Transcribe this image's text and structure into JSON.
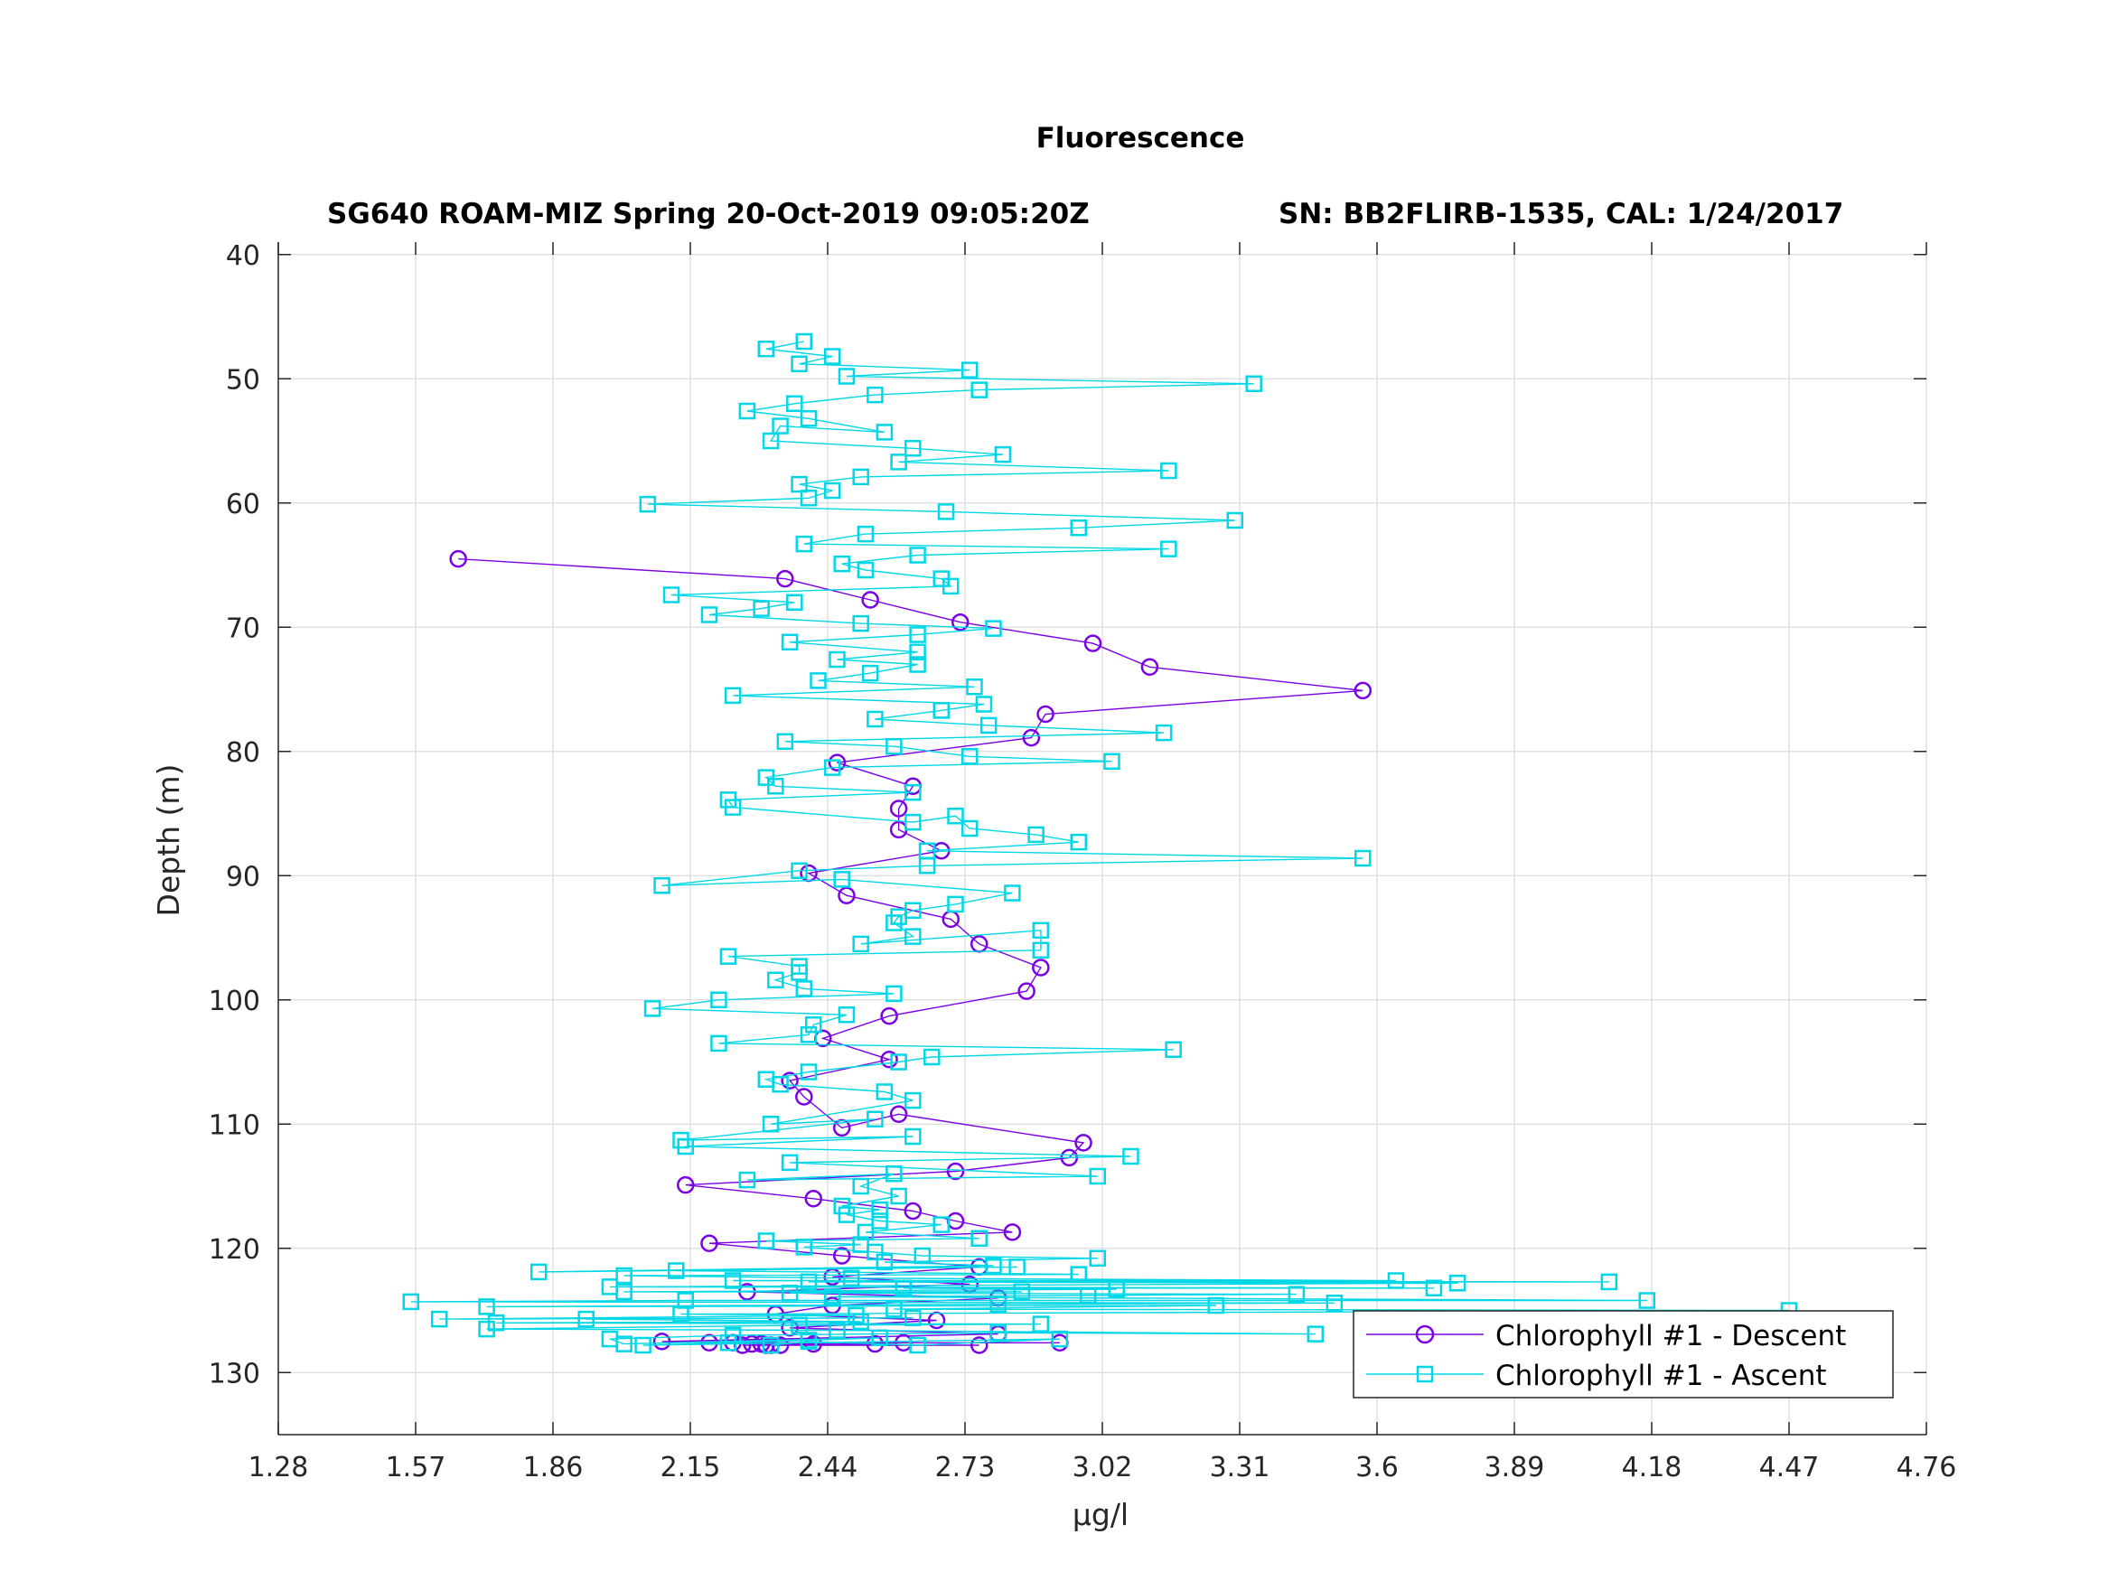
{
  "chart_data": {
    "type": "line",
    "title": "Fluorescence",
    "subtitle_left": "SG640 ROAM-MIZ Spring 20-Oct-2019 09:05:20Z",
    "subtitle_right": "SN: BB2FLIRB-1535, CAL: 1/24/2017",
    "xlabel": "μg/l",
    "ylabel": "Depth (m)",
    "xlim": [
      1.28,
      4.76
    ],
    "ylim": [
      135,
      39
    ],
    "y_reversed": true,
    "grid": true,
    "x_ticks": [
      "1.28",
      "1.57",
      "1.86",
      "2.15",
      "2.44",
      "2.73",
      "3.02",
      "3.31",
      "3.6",
      "3.89",
      "4.18",
      "4.47",
      "4.76"
    ],
    "y_ticks": [
      "40",
      "50",
      "60",
      "70",
      "80",
      "90",
      "100",
      "110",
      "120",
      "130"
    ],
    "legend_position": "bottom-right",
    "series": [
      {
        "name": "Chlorophyll #1 - Descent",
        "color": "#7b00e6",
        "marker": "circle",
        "points": [
          [
            1.66,
            64.5
          ],
          [
            2.35,
            66.1
          ],
          [
            2.53,
            67.8
          ],
          [
            2.72,
            69.6
          ],
          [
            3.0,
            71.3
          ],
          [
            3.12,
            73.2
          ],
          [
            3.57,
            75.1
          ],
          [
            2.9,
            77.0
          ],
          [
            2.87,
            78.9
          ],
          [
            2.46,
            80.9
          ],
          [
            2.62,
            82.8
          ],
          [
            2.59,
            84.6
          ],
          [
            2.59,
            86.3
          ],
          [
            2.68,
            88.0
          ],
          [
            2.4,
            89.8
          ],
          [
            2.48,
            91.6
          ],
          [
            2.7,
            93.5
          ],
          [
            2.76,
            95.5
          ],
          [
            2.89,
            97.4
          ],
          [
            2.86,
            99.3
          ],
          [
            2.57,
            101.3
          ],
          [
            2.43,
            103.1
          ],
          [
            2.57,
            104.8
          ],
          [
            2.36,
            106.5
          ],
          [
            2.39,
            107.8
          ],
          [
            2.47,
            110.3
          ],
          [
            2.59,
            109.2
          ],
          [
            2.98,
            111.5
          ],
          [
            2.95,
            112.7
          ],
          [
            2.71,
            113.8
          ],
          [
            2.14,
            114.9
          ],
          [
            2.41,
            116.0
          ],
          [
            2.62,
            117.0
          ],
          [
            2.71,
            117.8
          ],
          [
            2.83,
            118.7
          ],
          [
            2.19,
            119.6
          ],
          [
            2.47,
            120.6
          ],
          [
            2.76,
            121.5
          ],
          [
            2.45,
            122.3
          ],
          [
            2.74,
            122.9
          ],
          [
            2.27,
            123.5
          ],
          [
            2.8,
            124.0
          ],
          [
            2.45,
            124.6
          ],
          [
            2.33,
            125.3
          ],
          [
            2.67,
            125.8
          ],
          [
            2.36,
            126.4
          ],
          [
            2.8,
            126.9
          ],
          [
            2.09,
            127.5
          ],
          [
            2.24,
            127.6
          ],
          [
            2.93,
            127.6
          ],
          [
            2.6,
            127.6
          ],
          [
            2.41,
            127.7
          ],
          [
            2.19,
            127.6
          ],
          [
            2.54,
            127.7
          ],
          [
            2.32,
            127.8
          ],
          [
            2.76,
            127.8
          ],
          [
            2.26,
            127.8
          ],
          [
            2.34,
            127.8
          ],
          [
            2.28,
            127.7
          ],
          [
            2.3,
            127.7
          ],
          [
            2.31,
            127.8
          ]
        ]
      },
      {
        "name": "Chlorophyll #1 - Ascent",
        "color": "#00d7e6",
        "marker": "square",
        "points": [
          [
            2.32,
            127.8
          ],
          [
            2.4,
            127.5
          ],
          [
            2.63,
            127.8
          ],
          [
            2.93,
            127.3
          ],
          [
            2.05,
            127.8
          ],
          [
            2.23,
            127.6
          ],
          [
            2.4,
            127.4
          ],
          [
            2.55,
            127.2
          ],
          [
            2.01,
            127.7
          ],
          [
            1.98,
            127.3
          ],
          [
            2.24,
            127.0
          ],
          [
            2.8,
            126.8
          ],
          [
            3.47,
            126.9
          ],
          [
            2.46,
            126.6
          ],
          [
            1.72,
            126.5
          ],
          [
            2.38,
            126.2
          ],
          [
            2.89,
            126.1
          ],
          [
            1.74,
            126.0
          ],
          [
            2.51,
            125.9
          ],
          [
            1.93,
            125.7
          ],
          [
            2.62,
            125.6
          ],
          [
            1.62,
            125.7
          ],
          [
            2.5,
            125.4
          ],
          [
            2.13,
            125.3
          ],
          [
            4.47,
            125.0
          ],
          [
            2.58,
            124.9
          ],
          [
            3.26,
            124.6
          ],
          [
            1.72,
            124.7
          ],
          [
            2.8,
            124.5
          ],
          [
            3.51,
            124.4
          ],
          [
            1.56,
            124.3
          ],
          [
            2.14,
            124.2
          ],
          [
            4.17,
            124.2
          ],
          [
            2.45,
            123.9
          ],
          [
            2.99,
            123.8
          ],
          [
            3.43,
            123.7
          ],
          [
            2.36,
            123.6
          ],
          [
            2.85,
            123.5
          ],
          [
            2.01,
            123.5
          ],
          [
            3.05,
            123.3
          ],
          [
            2.6,
            123.2
          ],
          [
            3.72,
            123.2
          ],
          [
            1.98,
            123.1
          ],
          [
            3.77,
            122.8
          ],
          [
            2.4,
            122.7
          ],
          [
            4.09,
            122.7
          ],
          [
            2.24,
            122.6
          ],
          [
            3.64,
            122.6
          ],
          [
            2.49,
            122.4
          ],
          [
            2.01,
            122.2
          ],
          [
            2.97,
            122.1
          ],
          [
            2.12,
            121.8
          ],
          [
            2.84,
            121.5
          ],
          [
            1.83,
            121.9
          ],
          [
            2.79,
            121.4
          ],
          [
            2.56,
            121.1
          ],
          [
            3.01,
            120.8
          ],
          [
            2.64,
            120.6
          ],
          [
            2.54,
            120.3
          ],
          [
            2.39,
            119.9
          ],
          [
            2.51,
            119.7
          ],
          [
            2.31,
            119.4
          ],
          [
            2.76,
            119.2
          ],
          [
            2.52,
            118.7
          ],
          [
            2.68,
            118.1
          ],
          [
            2.55,
            117.8
          ],
          [
            2.48,
            117.3
          ],
          [
            2.55,
            116.9
          ],
          [
            2.47,
            116.6
          ],
          [
            2.59,
            115.8
          ],
          [
            2.51,
            115.0
          ],
          [
            2.58,
            114.0
          ],
          [
            2.27,
            114.5
          ],
          [
            3.01,
            114.2
          ],
          [
            2.36,
            113.1
          ],
          [
            3.08,
            112.6
          ],
          [
            2.14,
            111.8
          ],
          [
            2.62,
            111.0
          ],
          [
            2.13,
            111.3
          ],
          [
            2.54,
            109.6
          ],
          [
            2.32,
            110.0
          ],
          [
            2.62,
            108.1
          ],
          [
            2.56,
            107.4
          ],
          [
            2.34,
            106.8
          ],
          [
            2.31,
            106.4
          ],
          [
            2.4,
            105.8
          ],
          [
            2.59,
            105.0
          ],
          [
            2.66,
            104.6
          ],
          [
            3.17,
            104.0
          ],
          [
            2.21,
            103.5
          ],
          [
            2.4,
            102.8
          ],
          [
            2.41,
            102.0
          ],
          [
            2.48,
            101.2
          ],
          [
            2.07,
            100.7
          ],
          [
            2.21,
            100.0
          ],
          [
            2.58,
            99.5
          ],
          [
            2.39,
            99.1
          ],
          [
            2.33,
            98.4
          ],
          [
            2.38,
            97.8
          ],
          [
            2.38,
            97.3
          ],
          [
            2.23,
            96.5
          ],
          [
            2.89,
            96.0
          ],
          [
            2.89,
            94.4
          ],
          [
            2.51,
            95.5
          ],
          [
            2.62,
            94.9
          ],
          [
            2.58,
            93.8
          ],
          [
            2.59,
            93.3
          ],
          [
            2.62,
            92.8
          ],
          [
            2.71,
            92.3
          ],
          [
            2.83,
            91.4
          ],
          [
            2.47,
            90.3
          ],
          [
            2.09,
            90.8
          ],
          [
            2.38,
            89.6
          ],
          [
            2.65,
            89.2
          ],
          [
            3.57,
            88.6
          ],
          [
            2.65,
            88.0
          ],
          [
            2.97,
            87.3
          ],
          [
            2.88,
            86.7
          ],
          [
            2.74,
            86.2
          ],
          [
            2.71,
            85.2
          ],
          [
            2.62,
            85.7
          ],
          [
            2.24,
            84.5
          ],
          [
            2.23,
            83.9
          ],
          [
            2.62,
            83.3
          ],
          [
            2.33,
            82.8
          ],
          [
            2.31,
            82.1
          ],
          [
            2.45,
            81.3
          ],
          [
            3.04,
            80.8
          ],
          [
            2.74,
            80.4
          ],
          [
            2.58,
            79.6
          ],
          [
            2.35,
            79.2
          ],
          [
            3.15,
            78.5
          ],
          [
            2.78,
            77.9
          ],
          [
            2.54,
            77.4
          ],
          [
            2.68,
            76.7
          ],
          [
            2.77,
            76.2
          ],
          [
            2.24,
            75.5
          ],
          [
            2.75,
            74.8
          ],
          [
            2.42,
            74.3
          ],
          [
            2.53,
            73.7
          ],
          [
            2.63,
            73.0
          ],
          [
            2.46,
            72.6
          ],
          [
            2.63,
            72.0
          ],
          [
            2.36,
            71.2
          ],
          [
            2.63,
            70.6
          ],
          [
            2.79,
            70.1
          ],
          [
            2.51,
            69.7
          ],
          [
            2.19,
            69.0
          ],
          [
            2.3,
            68.5
          ],
          [
            2.37,
            68.0
          ],
          [
            2.11,
            67.4
          ],
          [
            2.7,
            66.7
          ],
          [
            2.68,
            66.1
          ],
          [
            2.52,
            65.4
          ],
          [
            2.47,
            64.9
          ],
          [
            2.63,
            64.2
          ],
          [
            3.16,
            63.7
          ],
          [
            2.39,
            63.3
          ],
          [
            2.52,
            62.5
          ],
          [
            2.97,
            62.0
          ],
          [
            3.3,
            61.4
          ],
          [
            2.69,
            60.7
          ],
          [
            2.06,
            60.1
          ],
          [
            2.4,
            59.6
          ],
          [
            2.45,
            59.0
          ],
          [
            2.38,
            58.5
          ],
          [
            2.51,
            57.9
          ],
          [
            3.16,
            57.4
          ],
          [
            2.59,
            56.7
          ],
          [
            2.81,
            56.1
          ],
          [
            2.62,
            55.6
          ],
          [
            2.32,
            55.0
          ],
          [
            2.34,
            53.8
          ],
          [
            2.56,
            54.3
          ],
          [
            2.4,
            53.2
          ],
          [
            2.27,
            52.6
          ],
          [
            2.37,
            52.0
          ],
          [
            2.54,
            51.3
          ],
          [
            2.76,
            50.9
          ],
          [
            3.34,
            50.4
          ],
          [
            2.48,
            49.8
          ],
          [
            2.74,
            49.3
          ],
          [
            2.38,
            48.8
          ],
          [
            2.45,
            48.2
          ],
          [
            2.31,
            47.6
          ],
          [
            2.39,
            47.0
          ]
        ]
      }
    ]
  }
}
